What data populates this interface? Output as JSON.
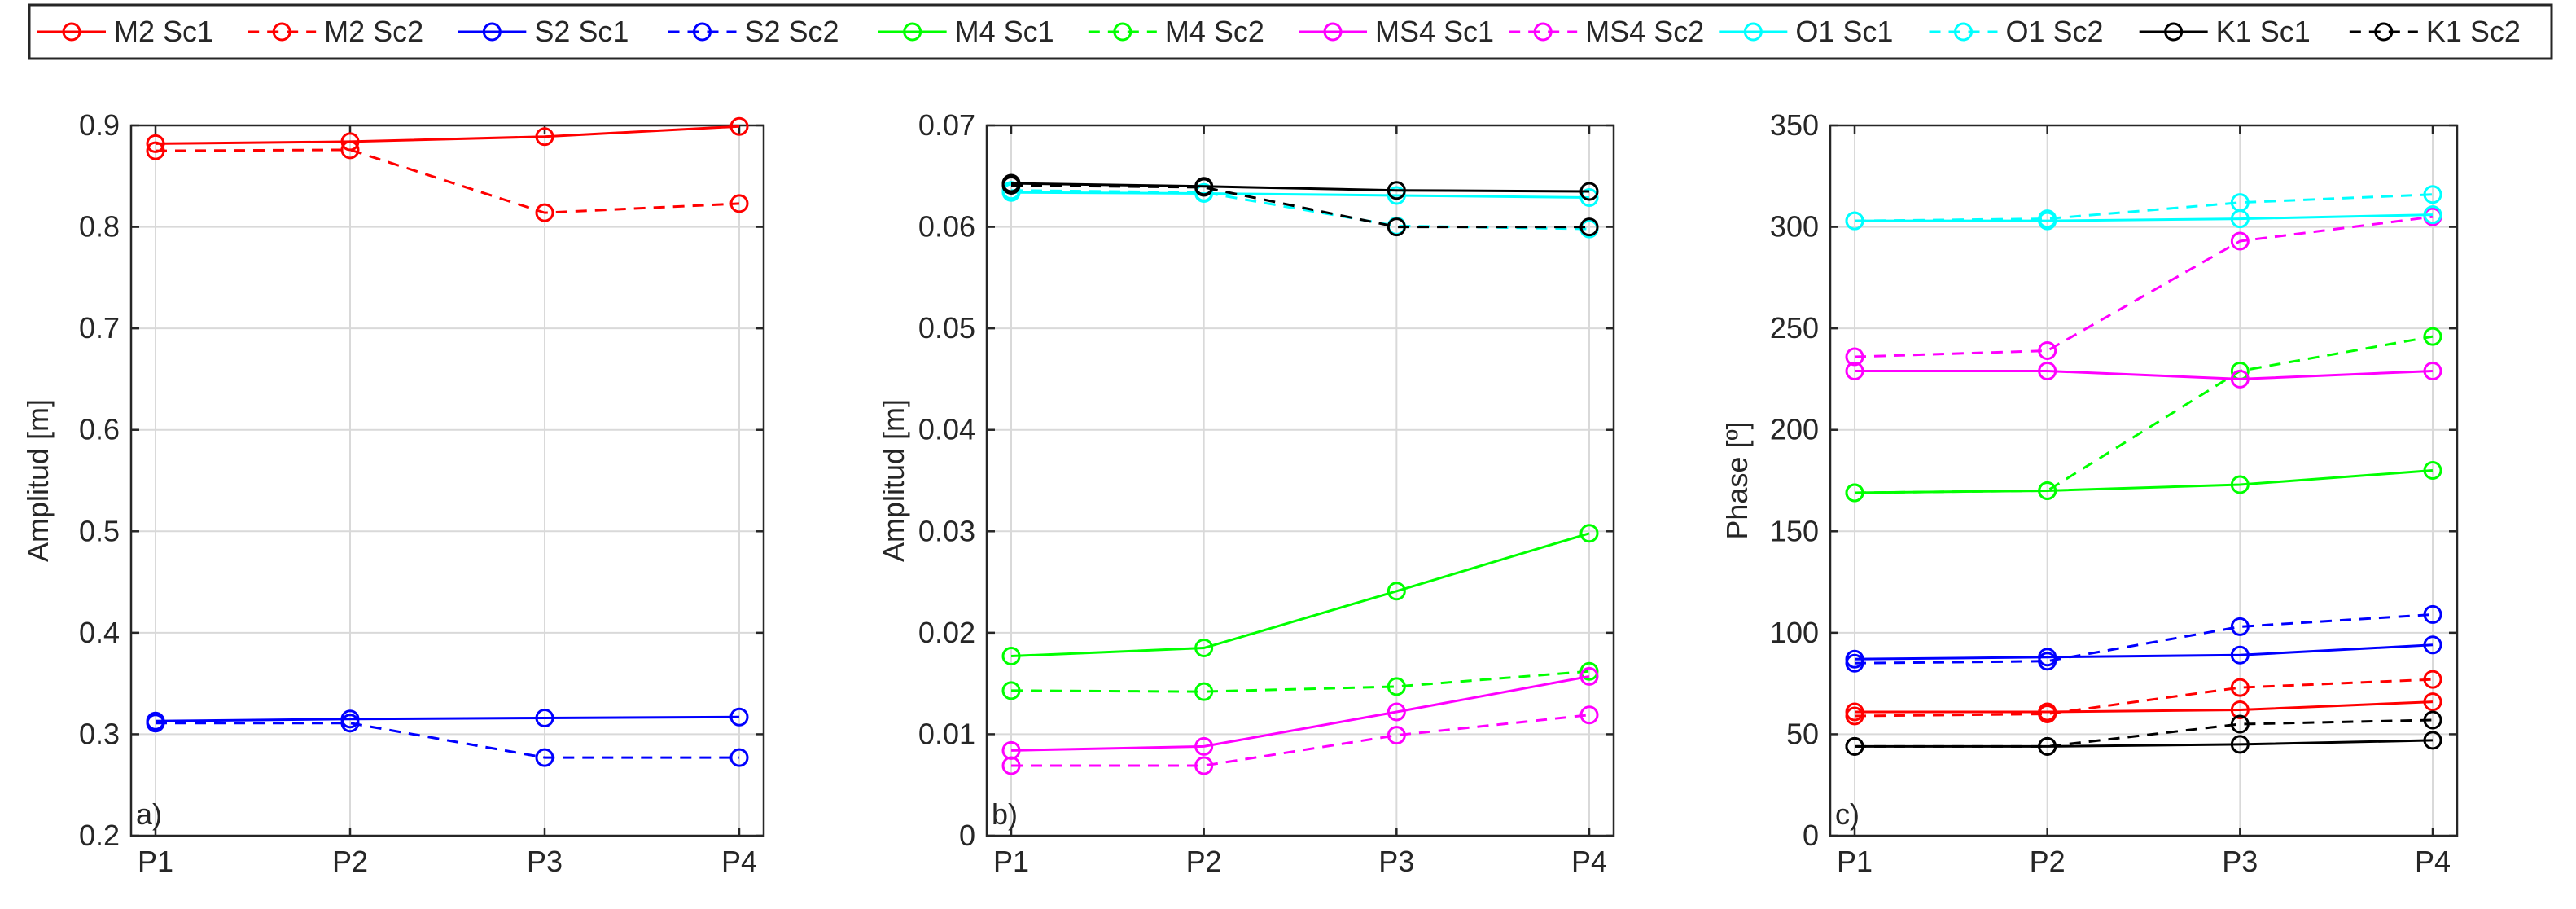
{
  "figure": {
    "legend": [
      {
        "label": "M2 Sc1",
        "color": "#ff0000",
        "style": "solid"
      },
      {
        "label": "M2 Sc2",
        "color": "#ff0000",
        "style": "dashed"
      },
      {
        "label": "S2 Sc1",
        "color": "#0000ff",
        "style": "solid"
      },
      {
        "label": "S2 Sc2",
        "color": "#0000ff",
        "style": "dashed"
      },
      {
        "label": "M4 Sc1",
        "color": "#00ff00",
        "style": "solid"
      },
      {
        "label": "M4 Sc2",
        "color": "#00ff00",
        "style": "dashed"
      },
      {
        "label": "MS4 Sc1",
        "color": "#ff00ff",
        "style": "solid"
      },
      {
        "label": "MS4 Sc2",
        "color": "#ff00ff",
        "style": "dashed"
      },
      {
        "label": "O1 Sc1",
        "color": "#00ffff",
        "style": "solid"
      },
      {
        "label": "O1 Sc2",
        "color": "#00ffff",
        "style": "dashed"
      },
      {
        "label": "K1 Sc1",
        "color": "#000000",
        "style": "solid"
      },
      {
        "label": "K1 Sc2",
        "color": "#000000",
        "style": "dashed"
      }
    ]
  },
  "chart_data": [
    {
      "type": "line",
      "panel_label": "a)",
      "categories": [
        "P1",
        "P2",
        "P3",
        "P4"
      ],
      "xlabel": "",
      "ylabel": "Amplitud [m]",
      "ylim": [
        0.2,
        0.9
      ],
      "yticks": [
        0.2,
        0.3,
        0.4,
        0.5,
        0.6,
        0.7,
        0.8,
        0.9
      ],
      "ytick_labels": [
        "0.2",
        "0.3",
        "0.4",
        "0.5",
        "0.6",
        "0.7",
        "0.8",
        "0.9"
      ],
      "grid": true,
      "series": [
        {
          "name": "M2 Sc1",
          "color": "#ff0000",
          "style": "solid",
          "values": [
            0.882,
            0.884,
            0.889,
            0.899
          ]
        },
        {
          "name": "M2 Sc2",
          "color": "#ff0000",
          "style": "dashed",
          "values": [
            0.875,
            0.876,
            0.814,
            0.823
          ]
        },
        {
          "name": "S2 Sc1",
          "color": "#0000ff",
          "style": "solid",
          "values": [
            0.313,
            0.315,
            0.316,
            0.317
          ]
        },
        {
          "name": "S2 Sc2",
          "color": "#0000ff",
          "style": "dashed",
          "values": [
            0.311,
            0.311,
            0.277,
            0.277
          ]
        }
      ]
    },
    {
      "type": "line",
      "panel_label": "b)",
      "categories": [
        "P1",
        "P2",
        "P3",
        "P4"
      ],
      "xlabel": "",
      "ylabel": "Amplitud [m]",
      "ylim": [
        0,
        0.07
      ],
      "yticks": [
        0,
        0.01,
        0.02,
        0.03,
        0.04,
        0.05,
        0.06,
        0.07
      ],
      "ytick_labels": [
        "0",
        "0.01",
        "0.02",
        "0.03",
        "0.04",
        "0.05",
        "0.06",
        "0.07"
      ],
      "grid": true,
      "series": [
        {
          "name": "M4 Sc1",
          "color": "#00ff00",
          "style": "solid",
          "values": [
            0.0177,
            0.0185,
            0.0241,
            0.0298
          ]
        },
        {
          "name": "M4 Sc2",
          "color": "#00ff00",
          "style": "dashed",
          "values": [
            0.0143,
            0.0142,
            0.0147,
            0.0162
          ]
        },
        {
          "name": "MS4 Sc1",
          "color": "#ff00ff",
          "style": "solid",
          "values": [
            0.0084,
            0.0088,
            0.0122,
            0.0157
          ]
        },
        {
          "name": "MS4 Sc2",
          "color": "#ff00ff",
          "style": "dashed",
          "values": [
            0.0069,
            0.0069,
            0.0099,
            0.0119
          ]
        },
        {
          "name": "O1 Sc1",
          "color": "#00ffff",
          "style": "solid",
          "values": [
            0.0634,
            0.0633,
            0.0631,
            0.0629
          ]
        },
        {
          "name": "O1 Sc2",
          "color": "#00ffff",
          "style": "dashed",
          "values": [
            0.0636,
            0.0634,
            0.0601,
            0.0598
          ]
        },
        {
          "name": "K1 Sc1",
          "color": "#000000",
          "style": "solid",
          "values": [
            0.0643,
            0.064,
            0.0636,
            0.0635
          ]
        },
        {
          "name": "K1 Sc2",
          "color": "#000000",
          "style": "dashed",
          "values": [
            0.0641,
            0.0639,
            0.06,
            0.06
          ]
        }
      ]
    },
    {
      "type": "line",
      "panel_label": "c)",
      "categories": [
        "P1",
        "P2",
        "P3",
        "P4"
      ],
      "xlabel": "",
      "ylabel": "Phase [º]",
      "ylim": [
        0,
        350
      ],
      "yticks": [
        0,
        50,
        100,
        150,
        200,
        250,
        300,
        350
      ],
      "ytick_labels": [
        "0",
        "50",
        "100",
        "150",
        "200",
        "250",
        "300",
        "350"
      ],
      "grid": true,
      "series": [
        {
          "name": "M2 Sc1",
          "color": "#ff0000",
          "style": "solid",
          "values": [
            61,
            61,
            62,
            66
          ]
        },
        {
          "name": "M2 Sc2",
          "color": "#ff0000",
          "style": "dashed",
          "values": [
            59,
            60,
            73,
            77
          ]
        },
        {
          "name": "S2 Sc1",
          "color": "#0000ff",
          "style": "solid",
          "values": [
            87,
            88,
            89,
            94
          ]
        },
        {
          "name": "S2 Sc2",
          "color": "#0000ff",
          "style": "dashed",
          "values": [
            85,
            86,
            103,
            109
          ]
        },
        {
          "name": "M4 Sc1",
          "color": "#00ff00",
          "style": "solid",
          "values": [
            169,
            170,
            173,
            180
          ]
        },
        {
          "name": "M4 Sc2",
          "color": "#00ff00",
          "style": "dashed",
          "values": [
            169,
            170,
            229,
            246
          ]
        },
        {
          "name": "MS4 Sc1",
          "color": "#ff00ff",
          "style": "solid",
          "values": [
            229,
            229,
            225,
            229
          ]
        },
        {
          "name": "MS4 Sc2",
          "color": "#ff00ff",
          "style": "dashed",
          "values": [
            236,
            239,
            293,
            305
          ]
        },
        {
          "name": "O1 Sc1",
          "color": "#00ffff",
          "style": "solid",
          "values": [
            303,
            303,
            304,
            306
          ]
        },
        {
          "name": "O1 Sc2",
          "color": "#00ffff",
          "style": "dashed",
          "values": [
            303,
            304,
            312,
            316
          ]
        },
        {
          "name": "K1 Sc1",
          "color": "#000000",
          "style": "solid",
          "values": [
            44,
            44,
            45,
            47
          ]
        },
        {
          "name": "K1 Sc2",
          "color": "#000000",
          "style": "dashed",
          "values": [
            44,
            44,
            55,
            57
          ]
        }
      ]
    }
  ]
}
